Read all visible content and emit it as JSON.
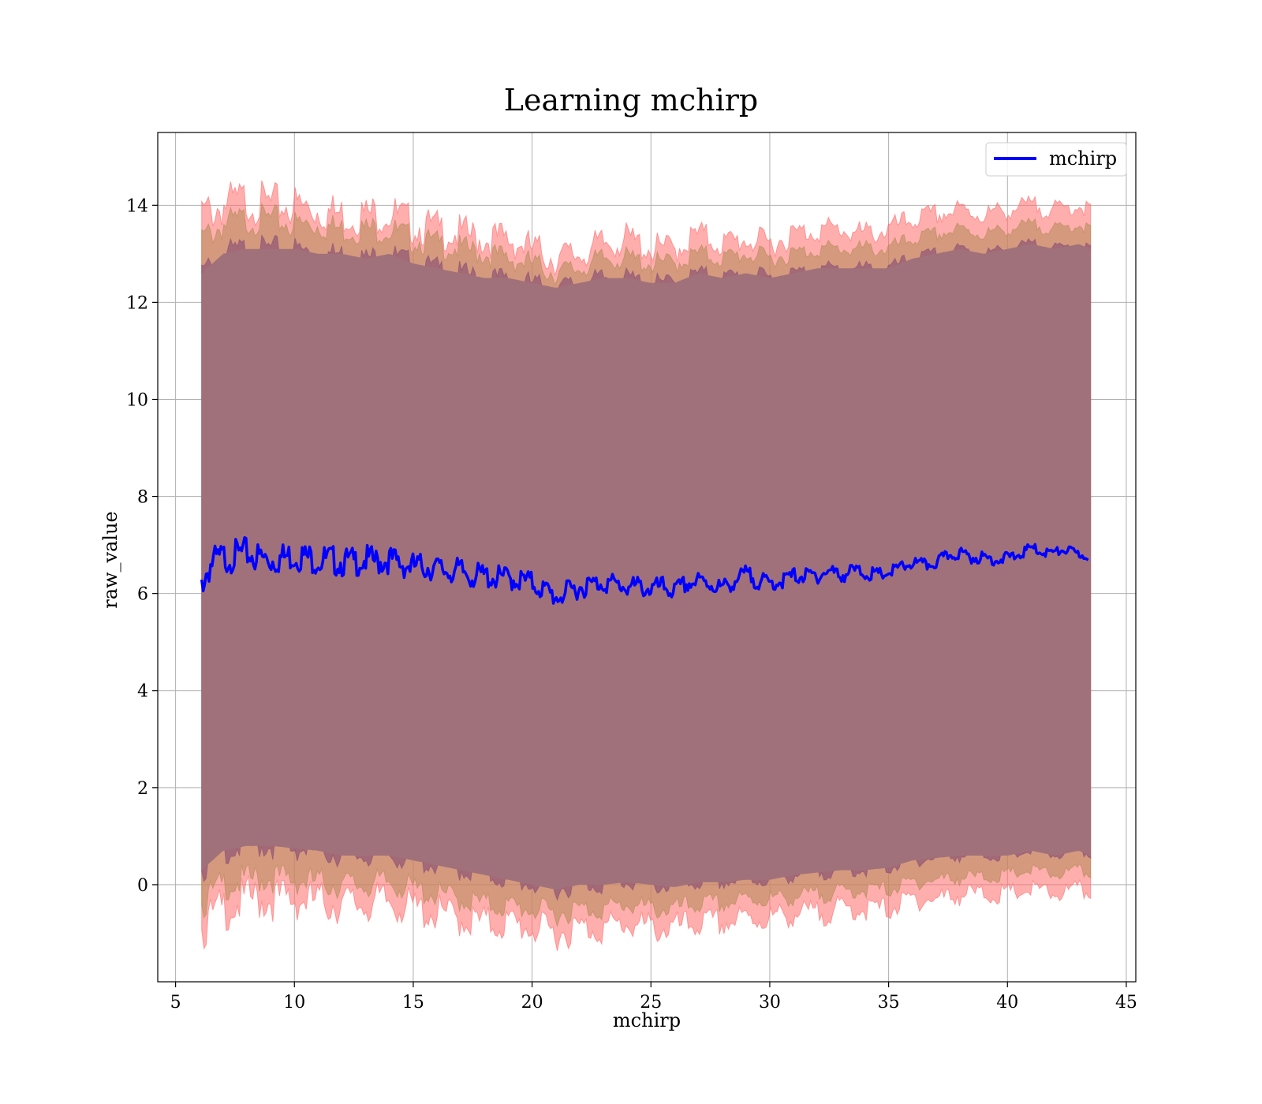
{
  "chart_data": {
    "type": "line",
    "title": "Learning mchirp",
    "xlabel": "mchirp",
    "ylabel": "raw_value",
    "xlim": [
      4.25,
      45.4
    ],
    "ylim": [
      -2.0,
      15.5
    ],
    "xticks": [
      5,
      10,
      15,
      20,
      25,
      30,
      35,
      40,
      45
    ],
    "yticks": [
      0,
      2,
      4,
      6,
      8,
      10,
      12,
      14
    ],
    "grid": true,
    "legend": {
      "placement": "top-right",
      "entries": [
        {
          "name": "mchirp",
          "color": "#0000ff"
        }
      ]
    },
    "colors": {
      "line": "#0000ff",
      "outer_band": "#ff0000",
      "middle_band": "#9c7a3c",
      "inner_band": "#7a3b6e",
      "fill": "#a0717a"
    },
    "series": [
      {
        "name": "mchirp",
        "x": [
          6.1,
          6.5,
          7,
          7.5,
          8,
          8.5,
          9,
          9.5,
          10,
          10.5,
          11,
          11.5,
          12,
          12.5,
          13,
          13.5,
          14,
          14.5,
          15,
          15.5,
          16,
          16.5,
          17,
          17.5,
          18,
          18.5,
          19,
          19.5,
          20,
          20.5,
          21,
          21.5,
          22,
          22.5,
          23,
          23.5,
          24,
          24.5,
          25,
          25.5,
          26,
          26.5,
          27,
          27.5,
          28,
          28.5,
          29,
          29.5,
          30,
          30.5,
          31,
          31.5,
          32,
          32.5,
          33,
          33.5,
          34,
          34.5,
          35,
          35.5,
          36,
          36.5,
          37,
          37.5,
          38,
          38.5,
          39,
          39.5,
          40,
          40.5,
          41,
          41.5,
          42,
          42.5,
          43,
          43.4
        ],
        "values": [
          6.4,
          6.8,
          6.9,
          6.95,
          7.0,
          6.9,
          6.85,
          6.9,
          6.95,
          6.9,
          6.85,
          6.85,
          6.8,
          6.8,
          6.85,
          6.8,
          6.85,
          6.75,
          6.7,
          6.7,
          6.65,
          6.6,
          6.6,
          6.5,
          6.5,
          6.45,
          6.45,
          6.4,
          6.35,
          6.2,
          6.05,
          6.15,
          6.25,
          6.3,
          6.35,
          6.3,
          6.25,
          6.25,
          6.2,
          6.25,
          6.15,
          6.3,
          6.35,
          6.3,
          6.2,
          6.35,
          6.5,
          6.35,
          6.3,
          6.35,
          6.45,
          6.45,
          6.45,
          6.55,
          6.45,
          6.55,
          6.5,
          6.45,
          6.5,
          6.6,
          6.7,
          6.65,
          6.7,
          6.85,
          6.9,
          6.8,
          6.8,
          6.75,
          6.8,
          6.85,
          7.0,
          6.9,
          6.9,
          6.95,
          6.85,
          6.8
        ]
      },
      {
        "name": "",
        "role": "outer-band",
        "x": [
          6.1,
          7,
          8,
          9,
          10,
          11,
          12,
          13,
          14,
          15,
          16,
          17,
          18,
          19,
          20,
          21,
          22,
          23,
          24,
          25,
          26,
          27,
          28,
          29,
          30,
          31,
          32,
          33,
          34,
          35,
          36,
          37,
          38,
          39,
          40,
          41,
          42,
          43,
          43.5
        ],
        "upper": [
          13.8,
          14.0,
          14.1,
          14.0,
          14.0,
          13.9,
          13.8,
          13.8,
          13.85,
          13.6,
          13.5,
          13.4,
          13.3,
          13.3,
          13.1,
          12.9,
          13.0,
          13.2,
          13.3,
          13.1,
          13.1,
          13.4,
          13.2,
          13.3,
          13.2,
          13.4,
          13.5,
          13.5,
          13.4,
          13.5,
          13.7,
          13.8,
          13.9,
          13.8,
          13.9,
          14.0,
          13.9,
          14.0,
          13.9
        ],
        "lower": [
          -0.9,
          -0.5,
          -0.3,
          -0.3,
          -0.3,
          -0.35,
          -0.4,
          -0.4,
          -0.35,
          -0.5,
          -0.6,
          -0.7,
          -0.8,
          -0.8,
          -0.9,
          -1.0,
          -0.9,
          -0.9,
          -0.8,
          -0.9,
          -0.9,
          -0.8,
          -0.8,
          -0.7,
          -0.7,
          -0.6,
          -0.6,
          -0.5,
          -0.5,
          -0.5,
          -0.3,
          -0.3,
          -0.2,
          -0.2,
          -0.2,
          -0.1,
          -0.2,
          -0.1,
          -0.2
        ]
      },
      {
        "name": "",
        "role": "middle-band",
        "x": [
          6.1,
          7,
          8,
          9,
          10,
          11,
          12,
          13,
          14,
          15,
          16,
          17,
          18,
          19,
          20,
          21,
          22,
          23,
          24,
          25,
          26,
          27,
          28,
          29,
          30,
          31,
          32,
          33,
          34,
          35,
          36,
          37,
          38,
          39,
          40,
          41,
          42,
          43,
          43.5
        ],
        "upper": [
          13.3,
          13.6,
          13.7,
          13.7,
          13.6,
          13.6,
          13.5,
          13.5,
          13.5,
          13.3,
          13.2,
          13.1,
          13.0,
          12.9,
          12.8,
          12.6,
          12.7,
          12.9,
          12.9,
          12.8,
          12.8,
          13.0,
          12.9,
          13.0,
          12.9,
          13.0,
          13.1,
          13.1,
          13.1,
          13.1,
          13.3,
          13.4,
          13.5,
          13.4,
          13.5,
          13.6,
          13.5,
          13.6,
          13.5
        ],
        "lower": [
          -0.4,
          0.0,
          0.1,
          0.15,
          0.1,
          0.05,
          0.0,
          0.0,
          0.05,
          -0.1,
          -0.2,
          -0.3,
          -0.4,
          -0.45,
          -0.5,
          -0.6,
          -0.5,
          -0.5,
          -0.4,
          -0.5,
          -0.5,
          -0.4,
          -0.4,
          -0.3,
          -0.3,
          -0.25,
          -0.2,
          -0.15,
          -0.1,
          -0.1,
          0.05,
          0.1,
          0.15,
          0.15,
          0.2,
          0.3,
          0.2,
          0.3,
          0.2
        ]
      },
      {
        "name": "",
        "role": "inner-band",
        "x": [
          6.1,
          7,
          8,
          9,
          10,
          11,
          12,
          13,
          14,
          15,
          16,
          17,
          18,
          19,
          20,
          21,
          22,
          23,
          24,
          25,
          26,
          27,
          28,
          29,
          30,
          31,
          32,
          33,
          34,
          35,
          36,
          37,
          38,
          39,
          40,
          41,
          42,
          43,
          43.5
        ],
        "upper": [
          12.6,
          13.0,
          13.1,
          13.1,
          13.1,
          13.0,
          13.0,
          12.9,
          13.0,
          12.8,
          12.7,
          12.6,
          12.5,
          12.5,
          12.4,
          12.3,
          12.4,
          12.5,
          12.5,
          12.4,
          12.4,
          12.6,
          12.5,
          12.6,
          12.5,
          12.6,
          12.7,
          12.7,
          12.7,
          12.7,
          12.9,
          13.0,
          13.1,
          13.0,
          13.1,
          13.2,
          13.1,
          13.2,
          13.1
        ],
        "lower": [
          0.3,
          0.7,
          0.8,
          0.8,
          0.75,
          0.7,
          0.6,
          0.6,
          0.6,
          0.5,
          0.4,
          0.3,
          0.2,
          0.1,
          0.0,
          -0.1,
          0.0,
          0.0,
          0.05,
          0.0,
          -0.05,
          0.05,
          0.05,
          0.1,
          0.1,
          0.2,
          0.25,
          0.3,
          0.3,
          0.35,
          0.5,
          0.55,
          0.6,
          0.6,
          0.6,
          0.7,
          0.6,
          0.7,
          0.6
        ]
      }
    ]
  }
}
